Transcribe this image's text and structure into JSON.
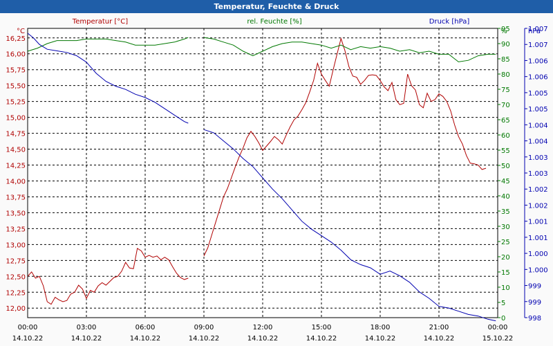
{
  "title": "Temperatur, Feuchte & Druck",
  "colors": {
    "temperature": "#b00000",
    "humidity": "#007800",
    "pressure": "#0000b0",
    "titlebar": "#1f5ea8",
    "grid": "#000000"
  },
  "headers": {
    "temperature": "Temperatur [°C]",
    "humidity": "rel. Feuchte [%]",
    "pressure": "Druck [hPa]"
  },
  "chart_data": {
    "type": "line",
    "title": "Temperatur, Feuchte & Druck",
    "grid": true,
    "x": {
      "tick_times": [
        "00:00",
        "03:00",
        "06:00",
        "09:00",
        "12:00",
        "15:00",
        "18:00",
        "21:00",
        "00:00"
      ],
      "tick_dates": [
        "14.10.22",
        "14.10.22",
        "14.10.22",
        "14.10.22",
        "14.10.22",
        "14.10.22",
        "14.10.22",
        "14.10.22",
        "15.10.22"
      ],
      "range_hours": [
        0,
        24
      ]
    },
    "axes": {
      "temperature": {
        "unit": "°C",
        "position": "left",
        "ylim": [
          11.85,
          16.4
        ],
        "ticks": [
          "16,25",
          "16,00",
          "15,75",
          "15,50",
          "15,25",
          "15,00",
          "14,75",
          "14,50",
          "14,25",
          "14,00",
          "13,75",
          "13,50",
          "13,25",
          "13,00",
          "12,75",
          "12,50",
          "12,25",
          "12,00"
        ],
        "tick_values": [
          16.25,
          16.0,
          15.75,
          15.5,
          15.25,
          15.0,
          14.75,
          14.5,
          14.25,
          14.0,
          13.75,
          13.5,
          13.25,
          13.0,
          12.75,
          12.5,
          12.25,
          12.0
        ]
      },
      "humidity": {
        "unit": "%",
        "position": "right",
        "ylim": [
          0,
          95
        ],
        "ticks": [
          "95",
          "90",
          "85",
          "80",
          "75",
          "70",
          "65",
          "60",
          "55",
          "50",
          "45",
          "40",
          "35",
          "30",
          "25",
          "20",
          "15",
          "10",
          "5",
          "0"
        ],
        "tick_values": [
          95,
          90,
          85,
          80,
          75,
          70,
          65,
          60,
          55,
          50,
          45,
          40,
          35,
          30,
          25,
          20,
          15,
          10,
          5,
          0
        ]
      },
      "pressure": {
        "unit": "hPa",
        "position": "right-outer",
        "ylim": [
          998.25,
          1007.25
        ],
        "ticks": [
          "1.007",
          "1.007",
          "1.006",
          "1.006",
          "1.005",
          "1.005",
          "1.004",
          "1.004",
          "1.003",
          "1.003",
          "1.002",
          "1.002",
          "1.001",
          "1.001",
          "1.000",
          "1.000",
          "999",
          "999",
          "998"
        ],
        "tick_values": [
          1007.25,
          1006.75,
          1006.25,
          1005.75,
          1005.25,
          1004.75,
          1004.25,
          1003.75,
          1003.25,
          1002.75,
          1002.25,
          1001.75,
          1001.25,
          1000.75,
          1000.25,
          999.75,
          999.25,
          998.75,
          998.25
        ]
      }
    },
    "series": [
      {
        "name": "Temperatur [°C]",
        "axis": "temperature",
        "color": "#b00000",
        "segments": [
          [
            [
              0.0,
              12.5
            ],
            [
              0.2,
              12.57
            ],
            [
              0.4,
              12.47
            ],
            [
              0.6,
              12.5
            ],
            [
              0.8,
              12.35
            ],
            [
              1.0,
              12.1
            ],
            [
              1.2,
              12.06
            ],
            [
              1.4,
              12.17
            ],
            [
              1.6,
              12.13
            ],
            [
              1.8,
              12.1
            ],
            [
              2.0,
              12.12
            ],
            [
              2.2,
              12.22
            ],
            [
              2.4,
              12.25
            ],
            [
              2.6,
              12.36
            ],
            [
              2.8,
              12.3
            ],
            [
              3.0,
              12.15
            ],
            [
              3.2,
              12.28
            ],
            [
              3.4,
              12.25
            ],
            [
              3.6,
              12.35
            ],
            [
              3.8,
              12.4
            ],
            [
              4.0,
              12.36
            ],
            [
              4.2,
              12.42
            ],
            [
              4.4,
              12.48
            ],
            [
              4.6,
              12.5
            ],
            [
              4.8,
              12.58
            ],
            [
              5.0,
              12.72
            ],
            [
              5.2,
              12.63
            ],
            [
              5.4,
              12.62
            ],
            [
              5.6,
              12.94
            ],
            [
              5.8,
              12.9
            ],
            [
              6.0,
              12.8
            ],
            [
              6.2,
              12.83
            ],
            [
              6.4,
              12.8
            ],
            [
              6.6,
              12.82
            ],
            [
              6.8,
              12.76
            ],
            [
              7.0,
              12.8
            ],
            [
              7.2,
              12.76
            ],
            [
              7.4,
              12.65
            ],
            [
              7.6,
              12.55
            ],
            [
              7.8,
              12.48
            ],
            [
              8.0,
              12.45
            ],
            [
              8.2,
              12.47
            ]
          ],
          [
            [
              9.0,
              12.82
            ],
            [
              9.2,
              12.95
            ],
            [
              9.4,
              13.15
            ],
            [
              9.6,
              13.35
            ],
            [
              9.8,
              13.55
            ],
            [
              10.0,
              13.75
            ],
            [
              10.2,
              13.88
            ],
            [
              10.4,
              14.05
            ],
            [
              10.6,
              14.22
            ],
            [
              10.8,
              14.38
            ],
            [
              11.0,
              14.52
            ],
            [
              11.2,
              14.68
            ],
            [
              11.4,
              14.78
            ],
            [
              11.6,
              14.7
            ],
            [
              11.8,
              14.6
            ],
            [
              12.0,
              14.48
            ],
            [
              12.2,
              14.55
            ],
            [
              12.4,
              14.62
            ],
            [
              12.6,
              14.7
            ],
            [
              12.8,
              14.65
            ],
            [
              13.0,
              14.58
            ],
            [
              13.2,
              14.72
            ],
            [
              13.4,
              14.85
            ],
            [
              13.6,
              14.96
            ],
            [
              13.8,
              15.02
            ],
            [
              14.0,
              15.12
            ],
            [
              14.2,
              15.23
            ],
            [
              14.4,
              15.4
            ],
            [
              14.6,
              15.58
            ],
            [
              14.8,
              15.85
            ],
            [
              15.0,
              15.68
            ],
            [
              15.2,
              15.58
            ],
            [
              15.4,
              15.49
            ],
            [
              15.6,
              15.75
            ],
            [
              15.8,
              16.0
            ],
            [
              16.0,
              16.24
            ],
            [
              16.2,
              16.05
            ],
            [
              16.4,
              15.8
            ],
            [
              16.6,
              15.65
            ],
            [
              16.8,
              15.63
            ],
            [
              17.0,
              15.52
            ],
            [
              17.2,
              15.58
            ],
            [
              17.4,
              15.66
            ],
            [
              17.6,
              15.67
            ],
            [
              17.8,
              15.66
            ],
            [
              18.0,
              15.58
            ],
            [
              18.2,
              15.48
            ],
            [
              18.4,
              15.42
            ],
            [
              18.6,
              15.55
            ],
            [
              18.8,
              15.28
            ],
            [
              19.0,
              15.2
            ],
            [
              19.2,
              15.22
            ],
            [
              19.4,
              15.68
            ],
            [
              19.6,
              15.5
            ],
            [
              19.8,
              15.43
            ],
            [
              20.0,
              15.2
            ],
            [
              20.2,
              15.15
            ],
            [
              20.4,
              15.38
            ],
            [
              20.6,
              15.25
            ],
            [
              20.8,
              15.28
            ],
            [
              21.0,
              15.37
            ],
            [
              21.2,
              15.33
            ],
            [
              21.4,
              15.25
            ],
            [
              21.6,
              15.1
            ],
            [
              21.8,
              14.88
            ],
            [
              22.0,
              14.7
            ],
            [
              22.2,
              14.58
            ],
            [
              22.4,
              14.4
            ],
            [
              22.6,
              14.28
            ],
            [
              22.8,
              14.27
            ],
            [
              23.0,
              14.25
            ],
            [
              23.2,
              14.18
            ],
            [
              23.4,
              14.2
            ]
          ]
        ]
      },
      {
        "name": "rel. Feuchte [%]",
        "axis": "humidity",
        "color": "#007800",
        "segments": [
          [
            [
              0.0,
              87.5
            ],
            [
              0.5,
              88.5
            ],
            [
              1.0,
              90.0
            ],
            [
              1.5,
              91.0
            ],
            [
              2.0,
              91.0
            ],
            [
              2.5,
              91.0
            ],
            [
              3.0,
              91.5
            ],
            [
              3.5,
              91.5
            ],
            [
              4.0,
              91.5
            ],
            [
              4.5,
              91.0
            ],
            [
              5.0,
              90.5
            ],
            [
              5.5,
              89.5
            ],
            [
              6.0,
              89.5
            ],
            [
              6.5,
              89.5
            ],
            [
              7.0,
              90.0
            ],
            [
              7.5,
              90.5
            ],
            [
              8.0,
              91.5
            ],
            [
              8.2,
              92.0
            ]
          ],
          [
            [
              9.0,
              92.0
            ],
            [
              9.5,
              91.5
            ],
            [
              10.0,
              90.5
            ],
            [
              10.5,
              89.5
            ],
            [
              11.0,
              87.5
            ],
            [
              11.5,
              86.0
            ],
            [
              12.0,
              87.5
            ],
            [
              12.5,
              89.0
            ],
            [
              13.0,
              90.0
            ],
            [
              13.5,
              90.5
            ],
            [
              14.0,
              90.5
            ],
            [
              14.5,
              90.0
            ],
            [
              15.0,
              89.5
            ],
            [
              15.5,
              88.5
            ],
            [
              16.0,
              89.5
            ],
            [
              16.5,
              88.0
            ],
            [
              17.0,
              89.0
            ],
            [
              17.5,
              88.5
            ],
            [
              18.0,
              89.0
            ],
            [
              18.5,
              88.5
            ],
            [
              19.0,
              87.5
            ],
            [
              19.5,
              88.0
            ],
            [
              20.0,
              87.0
            ],
            [
              20.5,
              87.5
            ],
            [
              21.0,
              86.5
            ],
            [
              21.5,
              86.5
            ],
            [
              22.0,
              84.0
            ],
            [
              22.5,
              84.5
            ],
            [
              23.0,
              86.0
            ],
            [
              23.5,
              86.5
            ],
            [
              23.9,
              86.5
            ]
          ]
        ]
      },
      {
        "name": "Druck [hPa]",
        "axis": "pressure",
        "color": "#0000b0",
        "segments": [
          [
            [
              0.0,
              1007.1
            ],
            [
              0.3,
              1006.95
            ],
            [
              0.6,
              1006.75
            ],
            [
              1.0,
              1006.6
            ],
            [
              1.5,
              1006.55
            ],
            [
              2.0,
              1006.5
            ],
            [
              2.5,
              1006.4
            ],
            [
              3.0,
              1006.2
            ],
            [
              3.5,
              1005.85
            ],
            [
              4.0,
              1005.6
            ],
            [
              4.5,
              1005.45
            ],
            [
              5.0,
              1005.35
            ],
            [
              5.5,
              1005.2
            ],
            [
              6.0,
              1005.1
            ],
            [
              6.5,
              1004.95
            ],
            [
              7.0,
              1004.75
            ],
            [
              7.5,
              1004.55
            ],
            [
              8.0,
              1004.35
            ],
            [
              8.2,
              1004.3
            ]
          ],
          [
            [
              9.0,
              1004.1
            ],
            [
              9.5,
              1004.0
            ],
            [
              10.0,
              1003.75
            ],
            [
              10.5,
              1003.5
            ],
            [
              11.0,
              1003.2
            ],
            [
              11.5,
              1002.95
            ],
            [
              12.0,
              1002.6
            ],
            [
              12.5,
              1002.25
            ],
            [
              13.0,
              1001.95
            ],
            [
              13.5,
              1001.6
            ],
            [
              14.0,
              1001.25
            ],
            [
              14.5,
              1001.0
            ],
            [
              15.0,
              1000.8
            ],
            [
              15.5,
              1000.6
            ],
            [
              16.0,
              1000.35
            ],
            [
              16.5,
              1000.05
            ],
            [
              17.0,
              999.9
            ],
            [
              17.5,
              999.8
            ],
            [
              18.0,
              999.6
            ],
            [
              18.5,
              999.7
            ],
            [
              19.0,
              999.55
            ],
            [
              19.5,
              999.35
            ],
            [
              20.0,
              999.05
            ],
            [
              20.5,
              998.85
            ],
            [
              21.0,
              998.6
            ],
            [
              21.5,
              998.55
            ],
            [
              22.0,
              998.45
            ],
            [
              22.5,
              998.35
            ],
            [
              23.0,
              998.3
            ],
            [
              23.5,
              998.2
            ],
            [
              23.9,
              998.15
            ]
          ]
        ]
      }
    ]
  }
}
